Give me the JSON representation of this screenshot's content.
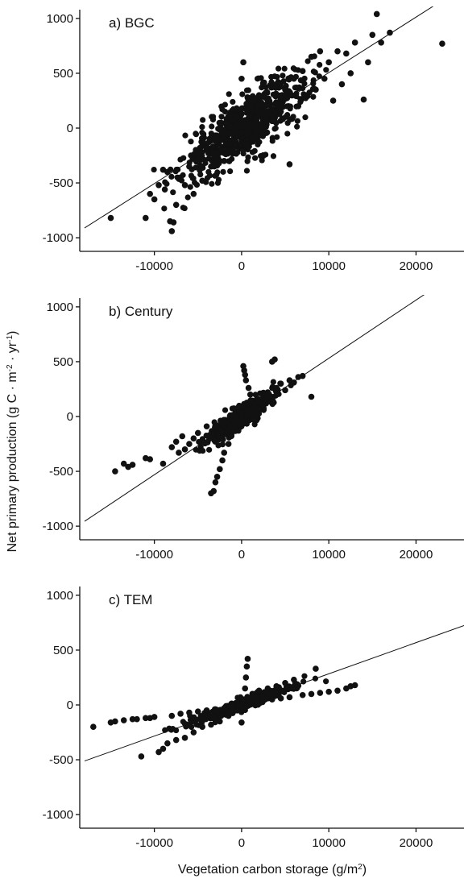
{
  "figure": {
    "xlabel_main": "Vegetation carbon storage (g/m",
    "xlabel_sup": "2",
    "xlabel_end": ")",
    "ylabel_main": "Net primary production (g C · m",
    "ylabel_sup1": "-2",
    "ylabel_mid": " · yr",
    "ylabel_sup2": "-1",
    "ylabel_end": ")"
  },
  "chart_data": [
    {
      "type": "scatter",
      "title": "a) BGC",
      "xlim": [
        -18000,
        25500
      ],
      "ylim": [
        -1080,
        1080
      ],
      "xticks": [
        -10000,
        0,
        10000,
        20000
      ],
      "xtick_labels": [
        "-10000",
        "0",
        "10000",
        "20000"
      ],
      "yticks": [
        -1000,
        -500,
        0,
        500,
        1000
      ],
      "ytick_labels": [
        "-1000",
        "-500",
        "0",
        "500",
        "1000"
      ],
      "regression_line": {
        "slope": 0.0506,
        "intercept": 0
      },
      "points": [
        [
          -15000,
          -820
        ],
        [
          -11000,
          -820
        ],
        [
          -10500,
          -600
        ],
        [
          -10000,
          -650
        ],
        [
          -9500,
          -520
        ],
        [
          -9000,
          -380
        ],
        [
          -8800,
          -560
        ],
        [
          -8500,
          -400
        ],
        [
          -8200,
          -850
        ],
        [
          -8000,
          -940
        ],
        [
          -7800,
          -860
        ],
        [
          -7500,
          -700
        ],
        [
          -7000,
          -450
        ],
        [
          -6500,
          -520
        ],
        [
          -6000,
          -350
        ],
        [
          -5500,
          -600
        ],
        [
          -5000,
          -300
        ],
        [
          -4500,
          -480
        ],
        [
          -4000,
          -200
        ],
        [
          -3500,
          -350
        ],
        [
          -3000,
          -250
        ],
        [
          -2500,
          -100
        ],
        [
          -2000,
          -300
        ],
        [
          -1500,
          -50
        ],
        [
          -1000,
          -200
        ],
        [
          -500,
          100
        ],
        [
          0,
          450
        ],
        [
          200,
          600
        ],
        [
          500,
          -150
        ],
        [
          1000,
          200
        ],
        [
          1500,
          50
        ],
        [
          2000,
          300
        ],
        [
          2500,
          -50
        ],
        [
          3000,
          250
        ],
        [
          3500,
          100
        ],
        [
          4000,
          400
        ],
        [
          4500,
          150
        ],
        [
          5000,
          350
        ],
        [
          5500,
          -330
        ],
        [
          6000,
          450
        ],
        [
          6500,
          200
        ],
        [
          7000,
          520
        ],
        [
          7500,
          300
        ],
        [
          8000,
          650
        ],
        [
          8500,
          350
        ],
        [
          9000,
          700
        ],
        [
          9500,
          450
        ],
        [
          10000,
          600
        ],
        [
          10500,
          250
        ],
        [
          11000,
          700
        ],
        [
          11500,
          400
        ],
        [
          12000,
          680
        ],
        [
          12500,
          500
        ],
        [
          13000,
          780
        ],
        [
          14000,
          260
        ],
        [
          14500,
          600
        ],
        [
          15000,
          850
        ],
        [
          15500,
          1040
        ],
        [
          16000,
          780
        ],
        [
          17000,
          870
        ],
        [
          23000,
          770
        ]
      ],
      "cloud": {
        "x_mean": 500,
        "x_sd": 3600,
        "noise_sd": 140,
        "count": 700
      }
    },
    {
      "type": "scatter",
      "title": "b) Century",
      "xlim": [
        -18000,
        25500
      ],
      "ylim": [
        -1080,
        1080
      ],
      "xticks": [
        -10000,
        0,
        10000,
        20000
      ],
      "xtick_labels": [
        "-10000",
        "0",
        "10000",
        "20000"
      ],
      "yticks": [
        -1000,
        -500,
        0,
        500,
        1000
      ],
      "ytick_labels": [
        "-1000",
        "-500",
        "0",
        "500",
        "1000"
      ],
      "regression_line": {
        "slope": 0.0531,
        "intercept": 0
      },
      "points": [
        [
          -14500,
          -500
        ],
        [
          -13500,
          -430
        ],
        [
          -13000,
          -460
        ],
        [
          -12500,
          -440
        ],
        [
          -11000,
          -380
        ],
        [
          -10500,
          -390
        ],
        [
          -9000,
          -430
        ],
        [
          -8000,
          -280
        ],
        [
          -7500,
          -230
        ],
        [
          -7200,
          -330
        ],
        [
          -6800,
          -180
        ],
        [
          -6500,
          -300
        ],
        [
          -6000,
          -250
        ],
        [
          -5500,
          -200
        ],
        [
          -5000,
          -150
        ],
        [
          -4500,
          -230
        ],
        [
          -4000,
          -90
        ],
        [
          -3500,
          -700
        ],
        [
          -3200,
          -680
        ],
        [
          -3000,
          -600
        ],
        [
          -2800,
          -550
        ],
        [
          -2500,
          -480
        ],
        [
          -2200,
          -400
        ],
        [
          -2000,
          -330
        ],
        [
          -1500,
          -250
        ],
        [
          -1200,
          -180
        ],
        [
          -800,
          -100
        ],
        [
          -400,
          -50
        ],
        [
          0,
          0
        ],
        [
          200,
          460
        ],
        [
          300,
          420
        ],
        [
          400,
          380
        ],
        [
          500,
          330
        ],
        [
          800,
          260
        ],
        [
          1000,
          200
        ],
        [
          1500,
          120
        ],
        [
          2000,
          150
        ],
        [
          2500,
          180
        ],
        [
          3000,
          220
        ],
        [
          3500,
          500
        ],
        [
          3800,
          520
        ],
        [
          4000,
          260
        ],
        [
          4500,
          300
        ],
        [
          5000,
          240
        ],
        [
          5500,
          330
        ],
        [
          6000,
          310
        ],
        [
          6500,
          360
        ],
        [
          7000,
          370
        ],
        [
          8000,
          180
        ]
      ],
      "cloud": {
        "x_mean": 0,
        "x_sd": 1800,
        "noise_sd": 50,
        "count": 500
      }
    },
    {
      "type": "scatter",
      "title": "c) TEM",
      "xlim": [
        -18000,
        25500
      ],
      "ylim": [
        -1080,
        1080
      ],
      "xticks": [
        -10000,
        0,
        10000,
        20000
      ],
      "xtick_labels": [
        "-10000",
        "0",
        "10000",
        "20000"
      ],
      "yticks": [
        -1000,
        -500,
        0,
        500,
        1000
      ],
      "ytick_labels": [
        "-1000",
        "-500",
        "0",
        "500",
        "1000"
      ],
      "regression_line": {
        "slope": 0.0284,
        "intercept": 0
      },
      "points": [
        [
          -17000,
          -200
        ],
        [
          -15000,
          -160
        ],
        [
          -14500,
          -150
        ],
        [
          -13500,
          -140
        ],
        [
          -12500,
          -130
        ],
        [
          -12000,
          -130
        ],
        [
          -11500,
          -470
        ],
        [
          -11000,
          -120
        ],
        [
          -10500,
          -120
        ],
        [
          -10000,
          -110
        ],
        [
          -9500,
          -430
        ],
        [
          -9000,
          -400
        ],
        [
          -8500,
          -350
        ],
        [
          -8000,
          -100
        ],
        [
          -7500,
          -320
        ],
        [
          -7000,
          -80
        ],
        [
          -6500,
          -300
        ],
        [
          -6000,
          -70
        ],
        [
          -5500,
          -250
        ],
        [
          -5000,
          -60
        ],
        [
          -4500,
          -200
        ],
        [
          -4000,
          -50
        ],
        [
          -3500,
          -180
        ],
        [
          -3000,
          -40
        ],
        [
          -2500,
          -150
        ],
        [
          -2000,
          -30
        ],
        [
          -1500,
          -100
        ],
        [
          -1000,
          -20
        ],
        [
          -500,
          -50
        ],
        [
          0,
          -160
        ],
        [
          200,
          50
        ],
        [
          400,
          150
        ],
        [
          500,
          250
        ],
        [
          600,
          350
        ],
        [
          700,
          420
        ],
        [
          1000,
          60
        ],
        [
          1500,
          100
        ],
        [
          2000,
          130
        ],
        [
          2500,
          40
        ],
        [
          3000,
          150
        ],
        [
          3500,
          50
        ],
        [
          4000,
          170
        ],
        [
          4500,
          60
        ],
        [
          5000,
          200
        ],
        [
          5500,
          70
        ],
        [
          6000,
          230
        ],
        [
          7000,
          90
        ],
        [
          8000,
          100
        ],
        [
          8500,
          330
        ],
        [
          9000,
          110
        ],
        [
          10000,
          120
        ],
        [
          11000,
          130
        ],
        [
          12000,
          150
        ],
        [
          12500,
          170
        ],
        [
          13000,
          180
        ]
      ],
      "cloud": {
        "x_mean": 0,
        "x_sd": 3000,
        "noise_sd": 25,
        "count": 450
      }
    }
  ]
}
